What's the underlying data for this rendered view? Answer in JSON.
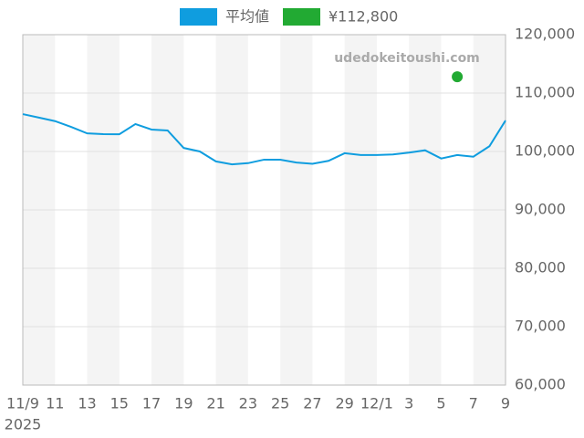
{
  "chart_data": {
    "type": "line",
    "watermark": "udedokeitoushi.com",
    "categories": [
      "11/9",
      null,
      "11",
      null,
      "13",
      null,
      "15",
      null,
      "17",
      null,
      "19",
      null,
      "21",
      null,
      "23",
      null,
      "25",
      null,
      "27",
      null,
      "29",
      null,
      "12/1",
      null,
      "3",
      null,
      "5",
      null,
      "7",
      null,
      "9"
    ],
    "x_sublabel": "2025",
    "series": [
      {
        "name": "平均値",
        "color": "#0f9ddf",
        "values": [
          106400,
          105800,
          105200,
          104200,
          103100,
          102970,
          102950,
          104700,
          103750,
          103600,
          100600,
          100000,
          98300,
          97800,
          98000,
          98600,
          98600,
          98100,
          97900,
          98400,
          99700,
          99400,
          99400,
          99500,
          99800,
          100200,
          98800,
          99400,
          99100,
          100900,
          105300
        ]
      },
      {
        "name": "¥112,800",
        "color": "#22aa33",
        "values": [
          null,
          null,
          null,
          null,
          null,
          null,
          null,
          null,
          null,
          null,
          null,
          null,
          null,
          null,
          null,
          null,
          null,
          null,
          null,
          null,
          null,
          null,
          null,
          null,
          null,
          null,
          null,
          112800,
          null,
          null,
          null
        ]
      }
    ],
    "ylim": [
      60000,
      120000
    ],
    "yticks": [
      {
        "value": 60000,
        "label": "60,000"
      },
      {
        "value": 70000,
        "label": "70,000"
      },
      {
        "value": 80000,
        "label": "80,000"
      },
      {
        "value": 90000,
        "label": "90,000"
      },
      {
        "value": 100000,
        "label": "100,000"
      },
      {
        "value": 110000,
        "label": "110,000"
      },
      {
        "value": 120000,
        "label": "120,000"
      }
    ],
    "y_axis_side": "right",
    "grid": true
  }
}
